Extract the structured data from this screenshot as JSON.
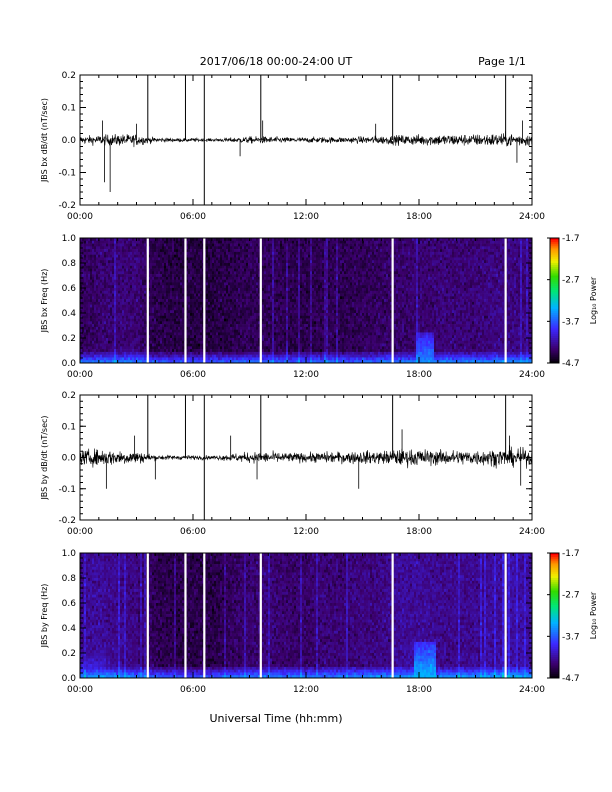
{
  "header": {
    "title": "2017/06/18  00:00-24:00 UT",
    "page": "Page 1/1"
  },
  "chart_data": [
    {
      "type": "line",
      "ylabel": "JBS bx dB/dt (nT/sec)",
      "ylim": [
        -0.2,
        0.2
      ],
      "yticks": [
        "0.2",
        "0.1",
        "0.0",
        "-0.1",
        "-0.2"
      ],
      "xlim": [
        0,
        24
      ],
      "xticks": [
        "00:00",
        "06:00",
        "12:00",
        "18:00",
        "24:00"
      ],
      "baseline": 0.0,
      "noise_envelope": {
        "hours": [
          0,
          1,
          2,
          3,
          4,
          5,
          6,
          7,
          8,
          9,
          10,
          11,
          12,
          13,
          14,
          15,
          16,
          17,
          18,
          19,
          20,
          21,
          22,
          23,
          24
        ],
        "amplitude": [
          0.02,
          0.025,
          0.03,
          0.03,
          0.012,
          0.01,
          0.01,
          0.008,
          0.012,
          0.018,
          0.018,
          0.014,
          0.014,
          0.016,
          0.015,
          0.018,
          0.022,
          0.025,
          0.028,
          0.03,
          0.03,
          0.03,
          0.035,
          0.035,
          0.03
        ]
      },
      "spikes": [
        {
          "t": 1.3,
          "value": -0.13
        },
        {
          "t": 1.6,
          "value": -0.16
        },
        {
          "t": 1.2,
          "value": 0.06
        },
        {
          "t": 3.0,
          "value": 0.05
        },
        {
          "t": 8.5,
          "value": -0.05
        },
        {
          "t": 9.7,
          "value": 0.06
        },
        {
          "t": 15.7,
          "value": 0.05
        },
        {
          "t": 23.2,
          "value": -0.07
        },
        {
          "t": 23.5,
          "value": 0.06
        }
      ],
      "calibration_lines": [
        {
          "t": 3.6,
          "from": 0.0,
          "to": 0.2
        },
        {
          "t": 5.6,
          "from": 0.0,
          "to": 0.2
        },
        {
          "t": 6.6,
          "from": -0.2,
          "to": 0.2
        },
        {
          "t": 9.6,
          "from": 0.0,
          "to": 0.2
        },
        {
          "t": 16.6,
          "from": 0.0,
          "to": 0.2
        },
        {
          "t": 22.6,
          "from": 0.0,
          "to": 0.2
        }
      ]
    },
    {
      "type": "heatmap",
      "ylabel": "JBS bx Freq (Hz)",
      "ylim": [
        0.0,
        1.0
      ],
      "yticks": [
        "1.0",
        "0.8",
        "0.6",
        "0.4",
        "0.2",
        "0.0"
      ],
      "xlim": [
        0,
        24
      ],
      "xticks": [
        "00:00",
        "06:00",
        "12:00",
        "18:00",
        "24:00"
      ],
      "colorbar": {
        "title": "Log₁₀ Power",
        "range": [
          -4.7,
          -1.7
        ],
        "ticks": [
          "-1.7",
          "-2.7",
          "-3.7",
          "-4.7"
        ]
      },
      "gap_lines_hours": [
        3.6,
        5.6,
        6.6,
        9.6,
        16.6,
        22.6
      ],
      "enhancements": [
        {
          "t": 18.3,
          "width": 0.5,
          "top_freq": 0.25,
          "level": -3.5
        }
      ]
    },
    {
      "type": "line",
      "ylabel": "JBS by dB/dt (nT/sec)",
      "ylim": [
        -0.2,
        0.2
      ],
      "yticks": [
        "0.2",
        "0.1",
        "0.0",
        "-0.1",
        "-0.2"
      ],
      "xlim": [
        0,
        24
      ],
      "xticks": [
        "00:00",
        "06:00",
        "12:00",
        "18:00",
        "24:00"
      ],
      "baseline": 0.0,
      "noise_envelope": {
        "hours": [
          0,
          1,
          2,
          3,
          4,
          5,
          6,
          7,
          8,
          9,
          10,
          11,
          12,
          13,
          14,
          15,
          16,
          17,
          18,
          19,
          20,
          21,
          22,
          23,
          24
        ],
        "amplitude": [
          0.04,
          0.045,
          0.04,
          0.035,
          0.015,
          0.012,
          0.012,
          0.01,
          0.02,
          0.028,
          0.03,
          0.026,
          0.025,
          0.03,
          0.03,
          0.035,
          0.035,
          0.045,
          0.045,
          0.04,
          0.04,
          0.042,
          0.045,
          0.05,
          0.045
        ]
      },
      "spikes": [
        {
          "t": 1.4,
          "value": -0.1
        },
        {
          "t": 2.9,
          "value": 0.07
        },
        {
          "t": 4.0,
          "value": -0.07
        },
        {
          "t": 8.0,
          "value": 0.07
        },
        {
          "t": 9.4,
          "value": -0.07
        },
        {
          "t": 14.8,
          "value": -0.1
        },
        {
          "t": 17.1,
          "value": 0.09
        },
        {
          "t": 22.8,
          "value": 0.07
        },
        {
          "t": 23.4,
          "value": -0.09
        }
      ],
      "calibration_lines": [
        {
          "t": 3.6,
          "from": 0.0,
          "to": 0.2
        },
        {
          "t": 5.6,
          "from": 0.0,
          "to": 0.2
        },
        {
          "t": 6.6,
          "from": -0.2,
          "to": 0.2
        },
        {
          "t": 9.6,
          "from": 0.0,
          "to": 0.2
        },
        {
          "t": 16.6,
          "from": 0.0,
          "to": 0.2
        },
        {
          "t": 22.6,
          "from": 0.0,
          "to": 0.2
        }
      ]
    },
    {
      "type": "heatmap",
      "ylabel": "JBS by Freq (Hz)",
      "ylim": [
        0.0,
        1.0
      ],
      "yticks": [
        "1.0",
        "0.8",
        "0.6",
        "0.4",
        "0.2",
        "0.0"
      ],
      "xlim": [
        0,
        24
      ],
      "xticks": [
        "00:00",
        "06:00",
        "12:00",
        "18:00",
        "24:00"
      ],
      "colorbar": {
        "title": "Log₁₀ Power",
        "range": [
          -4.7,
          -1.7
        ],
        "ticks": [
          "-1.7",
          "-2.7",
          "-3.7",
          "-4.7"
        ]
      },
      "gap_lines_hours": [
        3.6,
        5.6,
        6.6,
        9.6,
        16.6,
        22.6
      ],
      "enhancements": [
        {
          "t": 18.3,
          "width": 0.6,
          "top_freq": 0.3,
          "level": -3.3
        },
        {
          "t": 0.4,
          "width": 1.0,
          "top_freq": 0.45,
          "level": -3.8
        }
      ]
    }
  ],
  "xaxis_title": "Universal Time (hh:mm)"
}
